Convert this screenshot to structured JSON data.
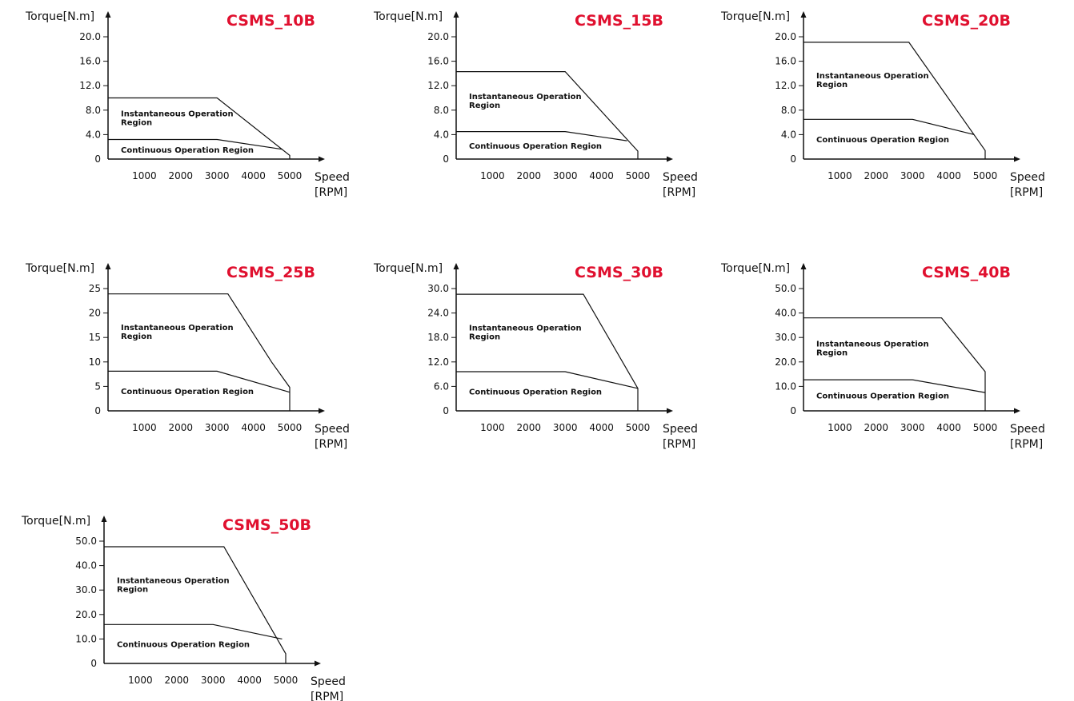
{
  "colors": {
    "title": "#e0102f",
    "line": "#111111"
  },
  "chart_data": [
    {
      "type": "area",
      "title": "CSMS_10B",
      "ylabel": "Torque[N.m]",
      "xlabel": "Speed",
      "xunit": "[RPM]",
      "xlim": [
        0,
        5000
      ],
      "ylim": [
        0,
        20
      ],
      "x_ticks": [
        {
          "v": 1000,
          "t": "1000"
        },
        {
          "v": 2000,
          "t": "2000"
        },
        {
          "v": 3000,
          "t": "3000"
        },
        {
          "v": 4000,
          "t": "4000"
        },
        {
          "v": 5000,
          "t": "5000"
        }
      ],
      "y_ticks": [
        {
          "v": 0,
          "t": "0"
        },
        {
          "v": 4,
          "t": "4.0"
        },
        {
          "v": 8,
          "t": "8.0"
        },
        {
          "v": 12,
          "t": "12.0"
        },
        {
          "v": 16,
          "t": "16.0"
        },
        {
          "v": 20,
          "t": "20.0"
        }
      ],
      "series": [
        {
          "name": "Instantaneous Operation Region",
          "x": [
            0,
            3000,
            5000,
            5000
          ],
          "y": [
            10.0,
            10.0,
            0.6,
            0
          ]
        },
        {
          "name": "Continuous Operation Region",
          "x": [
            0,
            3000,
            4800
          ],
          "y": [
            3.2,
            3.2,
            1.6
          ]
        }
      ]
    },
    {
      "type": "area",
      "title": "CSMS_15B",
      "ylabel": "Torque[N.m]",
      "xlabel": "Speed",
      "xunit": "[RPM]",
      "xlim": [
        0,
        5000
      ],
      "ylim": [
        0,
        20
      ],
      "x_ticks": [
        {
          "v": 1000,
          "t": "1000"
        },
        {
          "v": 2000,
          "t": "2000"
        },
        {
          "v": 3000,
          "t": "3000"
        },
        {
          "v": 4000,
          "t": "4000"
        },
        {
          "v": 5000,
          "t": "5000"
        }
      ],
      "y_ticks": [
        {
          "v": 0,
          "t": "0"
        },
        {
          "v": 4,
          "t": "4.0"
        },
        {
          "v": 8,
          "t": "8.0"
        },
        {
          "v": 12,
          "t": "12.0"
        },
        {
          "v": 16,
          "t": "16.0"
        },
        {
          "v": 20,
          "t": "20.0"
        }
      ],
      "series": [
        {
          "name": "Instantaneous Operation Region",
          "x": [
            0,
            3000,
            5000,
            5000
          ],
          "y": [
            14.3,
            14.3,
            1.3,
            0
          ]
        },
        {
          "name": "Continuous Operation Region",
          "x": [
            0,
            3000,
            4700
          ],
          "y": [
            4.5,
            4.5,
            3.0
          ]
        }
      ]
    },
    {
      "type": "area",
      "title": "CSMS_20B",
      "ylabel": "Torque[N.m]",
      "xlabel": "Speed",
      "xunit": "[RPM]",
      "xlim": [
        0,
        5000
      ],
      "ylim": [
        0,
        20
      ],
      "x_ticks": [
        {
          "v": 1000,
          "t": "1000"
        },
        {
          "v": 2000,
          "t": "2000"
        },
        {
          "v": 3000,
          "t": "3000"
        },
        {
          "v": 4000,
          "t": "4000"
        },
        {
          "v": 5000,
          "t": "5000"
        }
      ],
      "y_ticks": [
        {
          "v": 0,
          "t": "0"
        },
        {
          "v": 4,
          "t": "4.0"
        },
        {
          "v": 8,
          "t": "8.0"
        },
        {
          "v": 12,
          "t": "12.0"
        },
        {
          "v": 16,
          "t": "16.0"
        },
        {
          "v": 20,
          "t": "20.0"
        }
      ],
      "series": [
        {
          "name": "Instantaneous Operation Region",
          "x": [
            0,
            2900,
            5000,
            5000
          ],
          "y": [
            19.1,
            19.1,
            1.4,
            0
          ]
        },
        {
          "name": "Continuous Operation Region",
          "x": [
            0,
            3000,
            4700
          ],
          "y": [
            6.5,
            6.5,
            4.0
          ]
        }
      ]
    },
    {
      "type": "area",
      "title": "CSMS_25B",
      "ylabel": "Torque[N.m]",
      "xlabel": "Speed",
      "xunit": "[RPM]",
      "xlim": [
        0,
        5000
      ],
      "ylim": [
        0,
        25
      ],
      "x_ticks": [
        {
          "v": 1000,
          "t": "1000"
        },
        {
          "v": 2000,
          "t": "2000"
        },
        {
          "v": 3000,
          "t": "3000"
        },
        {
          "v": 4000,
          "t": "4000"
        },
        {
          "v": 5000,
          "t": "5000"
        }
      ],
      "y_ticks": [
        {
          "v": 0,
          "t": "0"
        },
        {
          "v": 5,
          "t": "5"
        },
        {
          "v": 10,
          "t": "10"
        },
        {
          "v": 15,
          "t": "15"
        },
        {
          "v": 20,
          "t": "20"
        },
        {
          "v": 25,
          "t": "25"
        }
      ],
      "series": [
        {
          "name": "Instantaneous Operation Region",
          "x": [
            0,
            3300,
            4500,
            5000,
            5000
          ],
          "y": [
            23.9,
            23.9,
            10.0,
            4.8,
            0
          ]
        },
        {
          "name": "Continuous Operation Region",
          "x": [
            0,
            3000,
            5000
          ],
          "y": [
            8.1,
            8.1,
            3.8
          ]
        }
      ]
    },
    {
      "type": "area",
      "title": "CSMS_30B",
      "ylabel": "Torque[N.m]",
      "xlabel": "Speed",
      "xunit": "[RPM]",
      "xlim": [
        0,
        5000
      ],
      "ylim": [
        0,
        30
      ],
      "x_ticks": [
        {
          "v": 1000,
          "t": "1000"
        },
        {
          "v": 2000,
          "t": "2000"
        },
        {
          "v": 3000,
          "t": "3000"
        },
        {
          "v": 4000,
          "t": "4000"
        },
        {
          "v": 5000,
          "t": "5000"
        }
      ],
      "y_ticks": [
        {
          "v": 0,
          "t": "0"
        },
        {
          "v": 6,
          "t": "6.0"
        },
        {
          "v": 12,
          "t": "12.0"
        },
        {
          "v": 18,
          "t": "18.0"
        },
        {
          "v": 24,
          "t": "24.0"
        },
        {
          "v": 30,
          "t": "30.0"
        }
      ],
      "series": [
        {
          "name": "Instantaneous Operation Region",
          "x": [
            0,
            3500,
            5000,
            5000
          ],
          "y": [
            28.6,
            28.6,
            5.5,
            0
          ]
        },
        {
          "name": "Continuous Operation Region",
          "x": [
            0,
            3000,
            5000
          ],
          "y": [
            9.6,
            9.6,
            5.5
          ]
        }
      ]
    },
    {
      "type": "area",
      "title": "CSMS_40B",
      "ylabel": "Torque[N.m]",
      "xlabel": "Speed",
      "xunit": "[RPM]",
      "xlim": [
        0,
        5000
      ],
      "ylim": [
        0,
        50
      ],
      "x_ticks": [
        {
          "v": 1000,
          "t": "1000"
        },
        {
          "v": 2000,
          "t": "2000"
        },
        {
          "v": 3000,
          "t": "3000"
        },
        {
          "v": 4000,
          "t": "4000"
        },
        {
          "v": 5000,
          "t": "5000"
        }
      ],
      "y_ticks": [
        {
          "v": 0,
          "t": "0"
        },
        {
          "v": 10,
          "t": "10.0"
        },
        {
          "v": 20,
          "t": "20.0"
        },
        {
          "v": 30,
          "t": "30.0"
        },
        {
          "v": 40,
          "t": "40.0"
        },
        {
          "v": 50,
          "t": "50.0"
        }
      ],
      "series": [
        {
          "name": "Instantaneous Operation Region",
          "x": [
            0,
            3800,
            5000,
            5000
          ],
          "y": [
            38.0,
            38.0,
            16.0,
            0
          ]
        },
        {
          "name": "Continuous Operation Region",
          "x": [
            0,
            3000,
            5000
          ],
          "y": [
            12.7,
            12.7,
            7.5
          ]
        }
      ]
    },
    {
      "type": "area",
      "title": "CSMS_50B",
      "ylabel": "Torque[N.m]",
      "xlabel": "Speed",
      "xunit": "[RPM]",
      "xlim": [
        0,
        5000
      ],
      "ylim": [
        0,
        50
      ],
      "x_ticks": [
        {
          "v": 1000,
          "t": "1000"
        },
        {
          "v": 2000,
          "t": "2000"
        },
        {
          "v": 3000,
          "t": "3000"
        },
        {
          "v": 4000,
          "t": "4000"
        },
        {
          "v": 5000,
          "t": "5000"
        }
      ],
      "y_ticks": [
        {
          "v": 0,
          "t": "0"
        },
        {
          "v": 10,
          "t": "10.0"
        },
        {
          "v": 20,
          "t": "20.0"
        },
        {
          "v": 30,
          "t": "30.0"
        },
        {
          "v": 40,
          "t": "40.0"
        },
        {
          "v": 50,
          "t": "50.0"
        }
      ],
      "series": [
        {
          "name": "Instantaneous Operation Region",
          "x": [
            0,
            3300,
            5000,
            5000
          ],
          "y": [
            47.7,
            47.7,
            4.0,
            0
          ]
        },
        {
          "name": "Continuous Operation Region",
          "x": [
            0,
            3000,
            4900
          ],
          "y": [
            15.9,
            15.9,
            10.0
          ]
        }
      ]
    }
  ]
}
